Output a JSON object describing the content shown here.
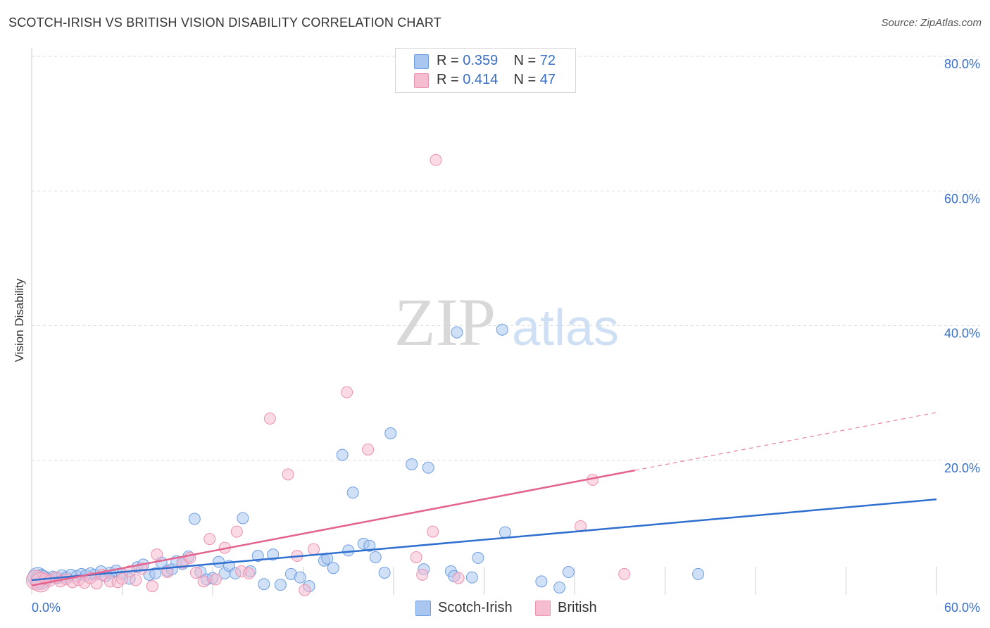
{
  "header": {
    "title": "SCOTCH-IRISH VS BRITISH VISION DISABILITY CORRELATION CHART",
    "source": "Source: ZipAtlas.com"
  },
  "legend": {
    "rows": [
      {
        "r_label": "R = ",
        "r_value": "0.359",
        "n_label": "N = ",
        "n_value": "72"
      },
      {
        "r_label": "R = ",
        "r_value": "0.414",
        "n_label": "N = ",
        "n_value": "47"
      }
    ]
  },
  "bottom_legend": {
    "items": [
      {
        "label": "Scotch-Irish"
      },
      {
        "label": "British"
      }
    ]
  },
  "watermark": {
    "zip": "ZIP",
    "atlas": "atlas"
  },
  "colors": {
    "scotch_fill": "#a9c6f0",
    "scotch_stroke": "#6f9ee0",
    "scotch_line": "#2f6fcf",
    "british_fill": "#f6bcd0",
    "british_stroke": "#ec92b2",
    "british_line": "#e3628e",
    "tick_label": "#3a6fc7",
    "grid": "#dddddd"
  },
  "chart_data": {
    "type": "scatter",
    "title": "SCOTCH-IRISH VS BRITISH VISION DISABILITY CORRELATION CHART",
    "xlabel": "",
    "ylabel": "Vision Disability",
    "xlim": [
      0,
      60
    ],
    "ylim": [
      0,
      80
    ],
    "x_tick_labels": [
      "0.0%",
      "60.0%"
    ],
    "y_ticks": [
      20,
      40,
      60,
      80
    ],
    "y_tick_labels": [
      "20.0%",
      "40.0%",
      "60.0%",
      "80.0%"
    ],
    "grid": true,
    "series": [
      {
        "name": "Scotch-Irish",
        "R": 0.359,
        "N": 72,
        "trend": {
          "x": [
            0,
            60
          ],
          "y": [
            2.2,
            14.2
          ],
          "dashed_extension": false
        },
        "points": [
          [
            0.4,
            2.6
          ],
          [
            0.6,
            2.3
          ],
          [
            0.8,
            2.8
          ],
          [
            1.1,
            2.4
          ],
          [
            1.4,
            2.7
          ],
          [
            1.7,
            2.5
          ],
          [
            2.0,
            2.9
          ],
          [
            2.3,
            2.6
          ],
          [
            2.6,
            3.0
          ],
          [
            3.0,
            2.8
          ],
          [
            3.3,
            3.1
          ],
          [
            3.6,
            2.9
          ],
          [
            3.9,
            3.2
          ],
          [
            4.2,
            3.0
          ],
          [
            4.6,
            3.5
          ],
          [
            4.9,
            2.8
          ],
          [
            5.2,
            3.3
          ],
          [
            5.6,
            3.6
          ],
          [
            6.0,
            3.1
          ],
          [
            6.5,
            2.4
          ],
          [
            7.0,
            4.1
          ],
          [
            7.4,
            4.5
          ],
          [
            7.8,
            3.0
          ],
          [
            8.2,
            3.2
          ],
          [
            8.6,
            4.8
          ],
          [
            9.0,
            3.6
          ],
          [
            9.3,
            3.8
          ],
          [
            9.6,
            5.0
          ],
          [
            10.0,
            4.6
          ],
          [
            10.4,
            5.7
          ],
          [
            10.8,
            11.3
          ],
          [
            11.2,
            3.4
          ],
          [
            11.6,
            2.3
          ],
          [
            12.0,
            2.5
          ],
          [
            12.4,
            4.9
          ],
          [
            12.8,
            3.2
          ],
          [
            13.1,
            4.3
          ],
          [
            13.5,
            3.2
          ],
          [
            14.0,
            11.4
          ],
          [
            14.5,
            3.5
          ],
          [
            15.0,
            5.8
          ],
          [
            15.4,
            1.6
          ],
          [
            16.0,
            6.0
          ],
          [
            16.5,
            1.5
          ],
          [
            17.2,
            3.1
          ],
          [
            17.8,
            2.6
          ],
          [
            18.4,
            1.3
          ],
          [
            19.4,
            5.1
          ],
          [
            19.6,
            5.4
          ],
          [
            20.0,
            4.0
          ],
          [
            20.6,
            20.8
          ],
          [
            21.0,
            6.6
          ],
          [
            21.3,
            15.2
          ],
          [
            22.0,
            7.6
          ],
          [
            22.4,
            7.3
          ],
          [
            22.8,
            5.6
          ],
          [
            23.4,
            3.3
          ],
          [
            23.8,
            24.0
          ],
          [
            25.2,
            19.4
          ],
          [
            26.0,
            3.8
          ],
          [
            26.3,
            18.9
          ],
          [
            27.8,
            3.5
          ],
          [
            28.0,
            2.8
          ],
          [
            28.2,
            39.0
          ],
          [
            29.2,
            2.6
          ],
          [
            29.6,
            5.5
          ],
          [
            31.2,
            39.4
          ],
          [
            31.4,
            9.3
          ],
          [
            33.8,
            2.0
          ],
          [
            35.0,
            1.1
          ],
          [
            35.6,
            3.4
          ],
          [
            44.2,
            3.1
          ]
        ]
      },
      {
        "name": "British",
        "R": 0.414,
        "N": 47,
        "trend": {
          "x": [
            0,
            40
          ],
          "y": [
            1.4,
            18.5
          ],
          "dashed_extension": {
            "x": [
              40,
              60
            ],
            "y": [
              18.5,
              27.1
            ]
          }
        },
        "points": [
          [
            0.3,
            2.2
          ],
          [
            0.6,
            1.9
          ],
          [
            0.9,
            2.4
          ],
          [
            1.2,
            2.1
          ],
          [
            1.6,
            2.6
          ],
          [
            1.9,
            2.0
          ],
          [
            2.3,
            2.3
          ],
          [
            2.7,
            1.9
          ],
          [
            3.1,
            2.2
          ],
          [
            3.5,
            1.8
          ],
          [
            3.9,
            2.5
          ],
          [
            4.3,
            1.7
          ],
          [
            4.7,
            3.0
          ],
          [
            5.2,
            2.0
          ],
          [
            5.7,
            1.9
          ],
          [
            6.0,
            2.4
          ],
          [
            6.5,
            3.5
          ],
          [
            6.9,
            2.2
          ],
          [
            7.3,
            3.9
          ],
          [
            8.0,
            1.3
          ],
          [
            8.3,
            6.0
          ],
          [
            9.0,
            3.4
          ],
          [
            10.0,
            4.8
          ],
          [
            10.5,
            5.5
          ],
          [
            10.9,
            3.3
          ],
          [
            11.4,
            2.0
          ],
          [
            11.8,
            8.3
          ],
          [
            12.2,
            2.3
          ],
          [
            12.8,
            7.0
          ],
          [
            13.6,
            9.4
          ],
          [
            13.9,
            3.5
          ],
          [
            14.4,
            3.2
          ],
          [
            15.8,
            26.2
          ],
          [
            17.0,
            17.9
          ],
          [
            17.6,
            5.8
          ],
          [
            18.1,
            0.7
          ],
          [
            18.7,
            6.8
          ],
          [
            20.9,
            30.1
          ],
          [
            22.3,
            21.6
          ],
          [
            25.5,
            5.6
          ],
          [
            25.9,
            3.0
          ],
          [
            26.6,
            9.4
          ],
          [
            26.8,
            64.6
          ],
          [
            28.3,
            2.5
          ],
          [
            36.4,
            10.2
          ],
          [
            37.2,
            17.1
          ],
          [
            39.3,
            3.1
          ]
        ]
      }
    ]
  }
}
